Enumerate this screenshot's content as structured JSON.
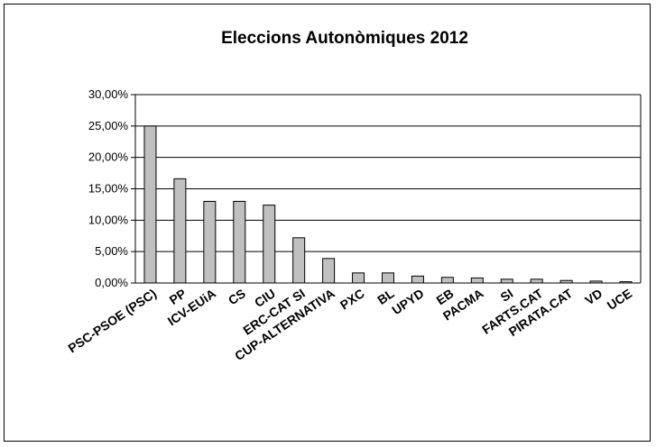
{
  "chart_data": {
    "type": "bar",
    "title": "Eleccions Autonòmiques 2012",
    "xlabel": "",
    "ylabel": "",
    "ylim": [
      0,
      30
    ],
    "y_tick_values": [
      0,
      5,
      10,
      15,
      20,
      25,
      30
    ],
    "y_tick_labels": [
      "0,00%",
      "5,00%",
      "10,00%",
      "15,00%",
      "20,00%",
      "25,00%",
      "30,00%"
    ],
    "grid": true,
    "legend": "none",
    "categories": [
      "PSC-PSOE (PSC)",
      "PP",
      "ICV-EUiA",
      "CS",
      "CIU",
      "ERC-CAT SI",
      "CUP-ALTERNATIVA",
      "PXC",
      "BL",
      "UPYD",
      "EB",
      "PACMA",
      "SI",
      "FARTS.CAT",
      "PIRATA.CAT",
      "VD",
      "UCE"
    ],
    "values": [
      25.0,
      16.6,
      13.0,
      13.0,
      12.4,
      7.2,
      3.9,
      1.6,
      1.6,
      1.1,
      0.9,
      0.8,
      0.6,
      0.6,
      0.4,
      0.3,
      0.2
    ],
    "colors": {
      "bar_fill": "#c0c0c0",
      "bar_stroke": "#000000",
      "grid": "#000000",
      "axis": "#000000"
    }
  }
}
